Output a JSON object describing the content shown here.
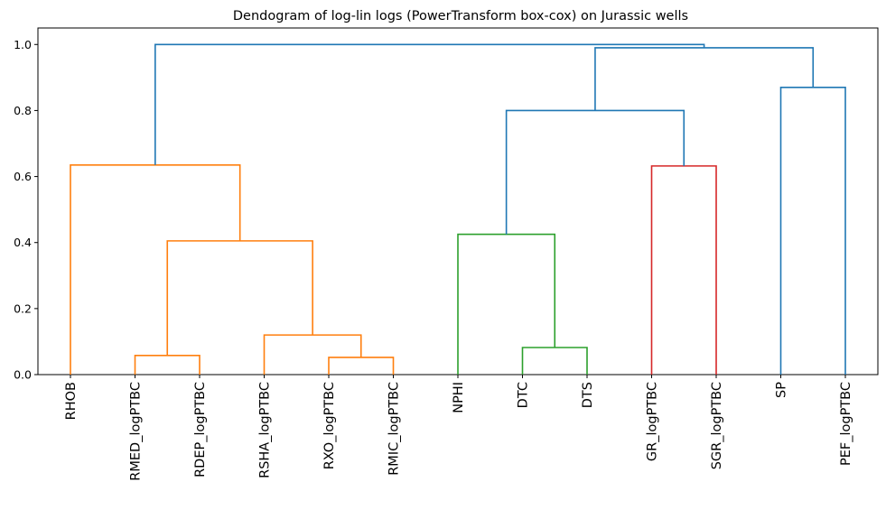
{
  "chart_data": {
    "type": "dendrogram",
    "title": "Dendogram of log-lin logs (PowerTransform box-cox) on Jurassic wells",
    "xlabel": "",
    "ylabel": "",
    "ylim": [
      0,
      1.05
    ],
    "yticks": [
      0.0,
      0.2,
      0.4,
      0.6,
      0.8,
      1.0
    ],
    "ytick_labels": [
      "0.0",
      "0.2",
      "0.4",
      "0.6",
      "0.8",
      "1.0"
    ],
    "leaves": [
      "RHOB",
      "RMED_logPTBC",
      "RDEP_logPTBC",
      "RSHA_logPTBC",
      "RXO_logPTBC",
      "RMIC_logPTBC",
      "NPHI",
      "DTC",
      "DTS",
      "GR_logPTBC",
      "SGR_logPTBC",
      "SP",
      "PEF_logPTBC"
    ],
    "colors": {
      "orange": "#ff7f0e",
      "green": "#2ca02c",
      "red": "#d62728",
      "blue": "#1f77b4"
    },
    "links": [
      {
        "left": "RMED_logPTBC",
        "right": "RDEP_logPTBC",
        "height": 0.058,
        "color": "orange"
      },
      {
        "left": "RXO_logPTBC",
        "right": "RMIC_logPTBC",
        "height": 0.052,
        "color": "orange"
      },
      {
        "left": "RSHA_logPTBC",
        "right": "RXO_logPTBC+RMIC_logPTBC",
        "height": 0.12,
        "color": "orange"
      },
      {
        "left": "RMED_logPTBC+RDEP_logPTBC",
        "right": "RSHA_logPTBC+RXO_logPTBC+RMIC_logPTBC",
        "height": 0.405,
        "color": "orange"
      },
      {
        "left": "RHOB",
        "right": "resistivity cluster",
        "height": 0.635,
        "color": "orange"
      },
      {
        "left": "DTC",
        "right": "DTS",
        "height": 0.082,
        "color": "green"
      },
      {
        "left": "NPHI",
        "right": "DTC+DTS",
        "height": 0.425,
        "color": "green"
      },
      {
        "left": "GR_logPTBC",
        "right": "SGR_logPTBC",
        "height": 0.632,
        "color": "red"
      },
      {
        "left": "NPHI+DTC+DTS",
        "right": "GR_logPTBC+SGR_logPTBC",
        "height": 0.8,
        "color": "blue"
      },
      {
        "left": "SP",
        "right": "PEF_logPTBC",
        "height": 0.87,
        "color": "blue"
      },
      {
        "left": "sonic/gamma cluster",
        "right": "SP+PEF_logPTBC",
        "height": 0.99,
        "color": "blue"
      },
      {
        "left": "orange cluster",
        "right": "rest",
        "height": 1.0,
        "color": "blue"
      }
    ]
  }
}
